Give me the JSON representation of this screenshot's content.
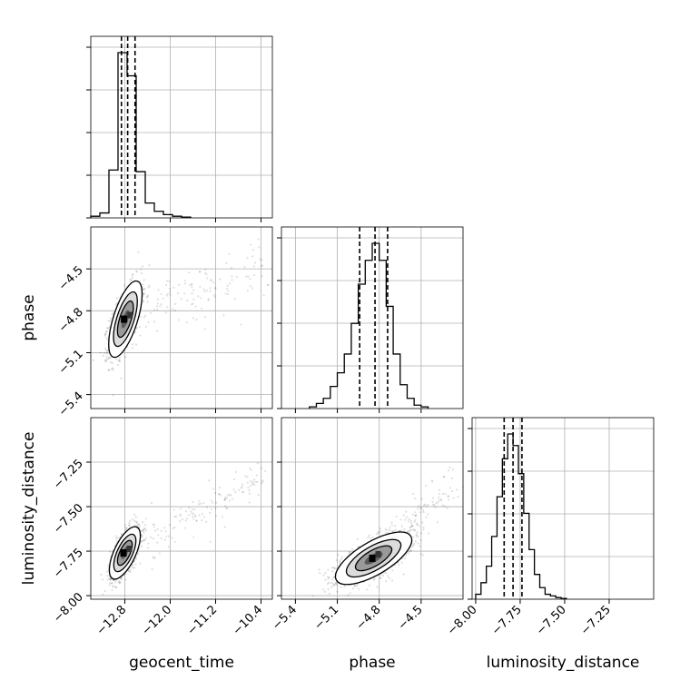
{
  "chart_data": {
    "type": "corner",
    "parameters": [
      "geocent_time",
      "phase",
      "luminosity_distance"
    ],
    "ranges": {
      "geocent_time": [
        -13.4,
        -10.2
      ],
      "phase": [
        -5.5,
        -4.2
      ],
      "luminosity_distance": [
        -8.02,
        -7.0
      ]
    },
    "ticks": {
      "geocent_time": [
        -12.8,
        -12.0,
        -11.2,
        -10.4
      ],
      "phase": [
        -5.4,
        -5.1,
        -4.8,
        -4.5
      ],
      "luminosity_distance": [
        -8.0,
        -7.75,
        -7.5,
        -7.25
      ]
    },
    "tick_labels": {
      "geocent_time": [
        "−12.8",
        "−12.0",
        "−11.2",
        "−10.4"
      ],
      "phase": [
        "−5.4",
        "−5.1",
        "−4.8",
        "−4.5"
      ],
      "luminosity_distance": [
        "−8.00",
        "−7.75",
        "−7.50",
        "−7.25"
      ]
    },
    "quantiles": {
      "geocent_time": [
        -12.86,
        -12.75,
        -12.62
      ],
      "phase": [
        -4.94,
        -4.83,
        -4.74
      ],
      "luminosity_distance": [
        -7.84,
        -7.79,
        -7.74
      ]
    },
    "histograms": {
      "geocent_time": {
        "edges": [
          -13.4,
          -13.24,
          -13.08,
          -12.92,
          -12.76,
          -12.6,
          -12.44,
          -12.28,
          -12.12,
          -11.96,
          -11.8,
          -11.64
        ],
        "counts": [
          0.01,
          0.03,
          0.29,
          1.0,
          0.86,
          0.28,
          0.09,
          0.04,
          0.02,
          0.01,
          0.005
        ]
      },
      "phase": {
        "edges": [
          -5.3,
          -5.25,
          -5.2,
          -5.15,
          -5.1,
          -5.05,
          -5.0,
          -4.95,
          -4.9,
          -4.85,
          -4.8,
          -4.75,
          -4.7,
          -4.65,
          -4.6,
          -4.55,
          -4.5,
          -4.45
        ],
        "counts": [
          0.01,
          0.03,
          0.06,
          0.13,
          0.21,
          0.32,
          0.5,
          0.73,
          0.87,
          0.97,
          0.87,
          0.6,
          0.32,
          0.14,
          0.06,
          0.02,
          0.01
        ]
      },
      "luminosity_distance": {
        "edges": [
          -8.0,
          -7.97,
          -7.94,
          -7.91,
          -7.88,
          -7.85,
          -7.82,
          -7.79,
          -7.76,
          -7.73,
          -7.7,
          -7.67,
          -7.64,
          -7.61,
          -7.58,
          -7.55,
          -7.52,
          -7.49
        ],
        "counts": [
          0.03,
          0.1,
          0.2,
          0.38,
          0.62,
          0.85,
          1.0,
          0.93,
          0.76,
          0.52,
          0.3,
          0.15,
          0.07,
          0.03,
          0.02,
          0.01,
          0.005
        ]
      }
    },
    "correlations": {
      "phase|geocent_time": {
        "mean": [
          -12.79,
          -4.86
        ],
        "sd": [
          0.14,
          0.13
        ],
        "rho": 0.65
      },
      "luminosity_distance|geocent_time": {
        "mean": [
          -12.8,
          -7.76
        ],
        "sd": [
          0.13,
          0.07
        ],
        "rho": 0.65
      },
      "luminosity_distance|phase": {
        "mean": [
          -4.84,
          -7.79
        ],
        "sd": [
          0.13,
          0.07
        ],
        "rho": 0.7
      }
    },
    "grid": true
  }
}
